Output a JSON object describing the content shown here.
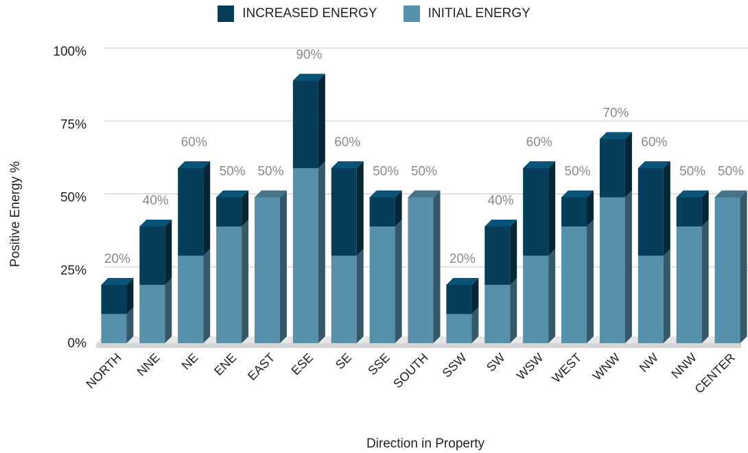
{
  "chart_data": {
    "type": "bar",
    "stacked": true,
    "three_d": true,
    "xlabel": "Direction in Property",
    "ylabel": "Positive Energy %",
    "ylim": [
      0,
      100
    ],
    "y_ticks": [
      0,
      25,
      50,
      75,
      100
    ],
    "y_tick_labels": [
      "0%",
      "25%",
      "50%",
      "75%",
      "100%"
    ],
    "grid": true,
    "legend_position": "top",
    "categories": [
      "NORTH",
      "NNE",
      "NE",
      "ENE",
      "EAST",
      "ESE",
      "SE",
      "SSE",
      "SOUTH",
      "SSW",
      "SW",
      "WSW",
      "WEST",
      "WNW",
      "NW",
      "NNW",
      "CENTER"
    ],
    "series": [
      {
        "name": "INITIAL ENERGY",
        "color": "#5690ab",
        "values": [
          10,
          20,
          30,
          40,
          50,
          60,
          30,
          40,
          50,
          10,
          20,
          30,
          40,
          50,
          30,
          40,
          50
        ]
      },
      {
        "name": "INCREASED ENERGY",
        "color": "#063e59",
        "values": [
          10,
          20,
          30,
          10,
          0,
          30,
          30,
          10,
          0,
          10,
          20,
          30,
          10,
          20,
          30,
          10,
          0
        ]
      }
    ],
    "data_labels": [
      "20%",
      "40%",
      "60%",
      "50%",
      "50%",
      "90%",
      "60%",
      "50%",
      "50%",
      "20%",
      "40%",
      "60%",
      "50%",
      "70%",
      "60%",
      "50%",
      "50%"
    ]
  },
  "legend": {
    "items": [
      {
        "label": "INCREASED ENERGY",
        "color": "#063e59"
      },
      {
        "label": "INITIAL ENERGY",
        "color": "#5690ab"
      }
    ]
  }
}
